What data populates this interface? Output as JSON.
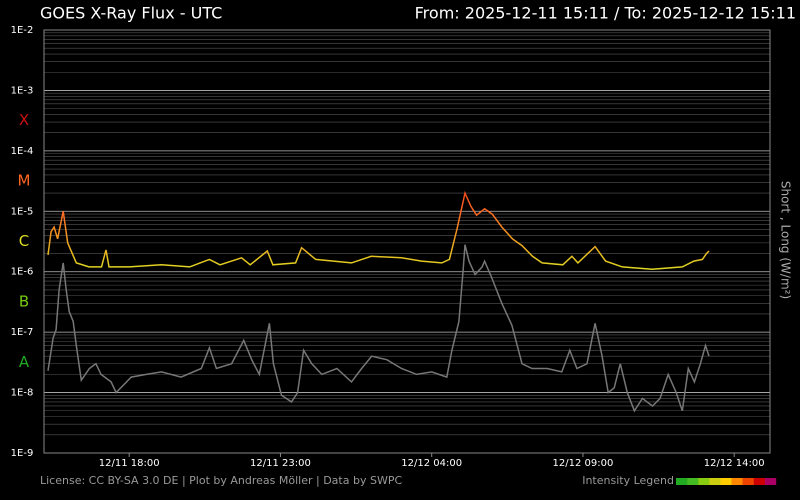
{
  "chart_data": {
    "type": "line",
    "title": "GOES X-Ray Flux - UTC",
    "range_label": "From: 2025-12-11 15:11  /  To: 2025-12-12 15:11",
    "y_label": "Short , Long (W/m²)",
    "footer": "License: CC BY-SA 3.0 DE | Plot by Andreas Möller | Data by SWPC",
    "log_y": true,
    "grid": true,
    "xlim": [
      "12/11 15:11",
      "12/12 15:11"
    ],
    "xticks": [
      "12/11 18:00",
      "12/11 23:00",
      "12/12 04:00",
      "12/12 09:00",
      "12/12 14:00"
    ],
    "ylim": [
      1e-09,
      0.01
    ],
    "yticks": [
      {
        "value": 1e-09,
        "label": "1E-9"
      },
      {
        "value": 1e-08,
        "label": "1E-8"
      },
      {
        "value": 1e-07,
        "label": "1E-7"
      },
      {
        "value": 1e-06,
        "label": "1E-6"
      },
      {
        "value": 1e-05,
        "label": "1E-5"
      },
      {
        "value": 0.0001,
        "label": "1E-4"
      },
      {
        "value": 0.001,
        "label": "1E-3"
      },
      {
        "value": 0.01,
        "label": "1E-2"
      }
    ],
    "classes": [
      {
        "label": "A",
        "value": 1e-08,
        "color": "#22aa22"
      },
      {
        "label": "B",
        "value": 1e-07,
        "color": "#77cc11"
      },
      {
        "label": "C",
        "value": 1e-06,
        "color": "#dddd22"
      },
      {
        "label": "M",
        "value": 1e-05,
        "color": "#ff6622"
      },
      {
        "label": "X",
        "value": 0.0001,
        "color": "#cc1111"
      }
    ],
    "intensity_legend": {
      "label": "Intensity Legend",
      "colors": [
        "#22aa22",
        "#44bb22",
        "#88cc11",
        "#cccc11",
        "#ffcc00",
        "#ff8800",
        "#ee4400",
        "#cc0000",
        "#aa0066"
      ]
    },
    "series": [
      {
        "color": "#777777",
        "x": [
          "12/11 15:19",
          "12/11 15:29",
          "12/11 15:35",
          "12/11 15:41",
          "12/11 15:49",
          "12/11 15:55",
          "12/11 16:01",
          "12/11 16:09",
          "12/11 16:15",
          "12/11 16:25",
          "12/11 16:41",
          "12/11 16:54",
          "12/11 17:04",
          "12/11 17:24",
          "12/11 17:34",
          "12/11 18:04",
          "12/11 18:34",
          "12/11 19:04",
          "12/11 19:43",
          "12/11 20:23",
          "12/11 20:39",
          "12/11 20:53",
          "12/11 21:23",
          "12/11 21:47",
          "12/11 22:03",
          "12/11 22:18",
          "12/11 22:38",
          "12/11 22:46",
          "12/11 23:02",
          "12/11 23:22",
          "12/11 23:34",
          "12/11 23:46",
          "12/12 00:02",
          "12/12 00:22",
          "12/12 00:52",
          "12/12 01:21",
          "12/12 01:41",
          "12/12 02:01",
          "12/12 02:31",
          "12/12 03:00",
          "12/12 03:30",
          "12/12 04:00",
          "12/12 04:30",
          "12/12 04:40",
          "12/12 04:54",
          "12/12 05:02",
          "12/12 05:06",
          "12/12 05:14",
          "12/12 05:26",
          "12/12 05:40",
          "12/12 05:45",
          "12/12 05:59",
          "12/12 06:19",
          "12/12 06:39",
          "12/12 06:59",
          "12/12 07:19",
          "12/12 07:49",
          "12/12 08:18",
          "12/12 08:34",
          "12/12 08:48",
          "12/12 09:08",
          "12/12 09:24",
          "12/12 09:38",
          "12/12 09:50",
          "12/12 10:02",
          "12/12 10:14",
          "12/12 10:28",
          "12/12 10:42",
          "12/12 10:58",
          "12/12 11:18",
          "12/12 11:33",
          "12/12 11:49",
          "12/12 12:05",
          "12/12 12:17",
          "12/12 12:29",
          "12/12 12:41",
          "12/12 12:53",
          "12/12 13:03",
          "12/12 13:10"
        ],
        "values": [
          2.3e-08,
          8e-08,
          1.1e-07,
          5e-07,
          1.4e-06,
          5e-07,
          2.2e-07,
          1.5e-07,
          6e-08,
          1.6e-08,
          2.5e-08,
          3e-08,
          2e-08,
          1.5e-08,
          1e-08,
          1.8e-08,
          2e-08,
          2.2e-08,
          1.8e-08,
          2.5e-08,
          5.5e-08,
          2.5e-08,
          3e-08,
          7.3e-08,
          3.5e-08,
          2e-08,
          1.4e-07,
          3e-08,
          9e-09,
          7e-09,
          1e-08,
          5e-08,
          3e-08,
          2e-08,
          2.5e-08,
          1.5e-08,
          2.5e-08,
          4e-08,
          3.5e-08,
          2.5e-08,
          2e-08,
          2.2e-08,
          1.8e-08,
          5e-08,
          1.5e-07,
          1e-06,
          2.8e-06,
          1.5e-06,
          9e-07,
          1.2e-06,
          1.5e-06,
          8e-07,
          3e-07,
          1.3e-07,
          3e-08,
          2.5e-08,
          2.5e-08,
          2.2e-08,
          5e-08,
          2.5e-08,
          3e-08,
          1.4e-07,
          4e-08,
          1e-08,
          1.2e-08,
          3e-08,
          1e-08,
          5e-09,
          8e-09,
          6e-09,
          8e-09,
          2e-08,
          1e-08,
          5e-09,
          2.5e-08,
          1.5e-08,
          3e-08,
          6e-08,
          4e-08
        ]
      },
      {
        "color_by_class": true,
        "x": [
          "12/11 15:19",
          "12/11 15:25",
          "12/11 15:31",
          "12/11 15:38",
          "12/11 15:49",
          "12/11 15:58",
          "12/11 16:15",
          "12/11 16:40",
          "12/11 17:05",
          "12/11 17:14",
          "12/11 17:20",
          "12/11 18:00",
          "12/11 19:04",
          "12/11 20:00",
          "12/11 20:39",
          "12/11 21:00",
          "12/11 21:43",
          "12/11 22:00",
          "12/11 22:34",
          "12/11 22:45",
          "12/11 23:30",
          "12/11 23:42",
          "12/12 00:10",
          "12/12 01:21",
          "12/12 02:00",
          "12/12 03:00",
          "12/12 03:40",
          "12/12 04:20",
          "12/12 04:35",
          "12/12 04:50",
          "12/12 05:06",
          "12/12 05:18",
          "12/12 05:29",
          "12/12 05:45",
          "12/12 06:00",
          "12/12 06:19",
          "12/12 06:40",
          "12/12 06:59",
          "12/12 07:20",
          "12/12 07:39",
          "12/12 08:20",
          "12/12 08:38",
          "12/12 08:50",
          "12/12 09:24",
          "12/12 09:45",
          "12/12 10:18",
          "12/12 11:17",
          "12/12 12:17",
          "12/12 12:40",
          "12/12 12:57",
          "12/12 13:05",
          "12/12 13:10"
        ],
        "values": [
          1.9e-06,
          4.6e-06,
          5.5e-06,
          3.5e-06,
          1e-05,
          3e-06,
          1.4e-06,
          1.2e-06,
          1.2e-06,
          2.3e-06,
          1.2e-06,
          1.2e-06,
          1.3e-06,
          1.2e-06,
          1.6e-06,
          1.3e-06,
          1.7e-06,
          1.3e-06,
          2.2e-06,
          1.3e-06,
          1.4e-06,
          2.5e-06,
          1.6e-06,
          1.4e-06,
          1.8e-06,
          1.7e-06,
          1.5e-06,
          1.4e-06,
          1.6e-06,
          5e-06,
          2e-05,
          1.2e-05,
          8.6e-06,
          1.1e-05,
          9e-06,
          5.5e-06,
          3.5e-06,
          2.7e-06,
          1.8e-06,
          1.4e-06,
          1.3e-06,
          1.8e-06,
          1.4e-06,
          2.6e-06,
          1.5e-06,
          1.2e-06,
          1.1e-06,
          1.2e-06,
          1.5e-06,
          1.6e-06,
          2e-06,
          2.2e-06
        ]
      }
    ]
  }
}
